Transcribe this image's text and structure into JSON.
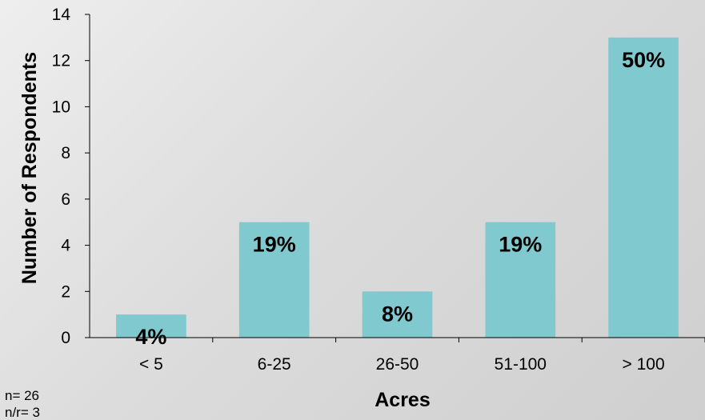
{
  "chart_data": {
    "type": "bar",
    "categories": [
      "< 5",
      "6-25",
      "26-50",
      "51-100",
      "> 100"
    ],
    "values": [
      1,
      5,
      2,
      5,
      13
    ],
    "data_labels": [
      "4%",
      "19%",
      "8%",
      "19%",
      "50%"
    ],
    "xlabel": "Acres",
    "ylabel": "Number of Respondents",
    "ylim": [
      0,
      14
    ],
    "yticks": [
      0,
      2,
      4,
      6,
      8,
      10,
      12,
      14
    ],
    "grid": false,
    "bar_color": "#7fc9cf"
  },
  "notes": {
    "n": "n= 26",
    "nr": "n/r= 3"
  }
}
